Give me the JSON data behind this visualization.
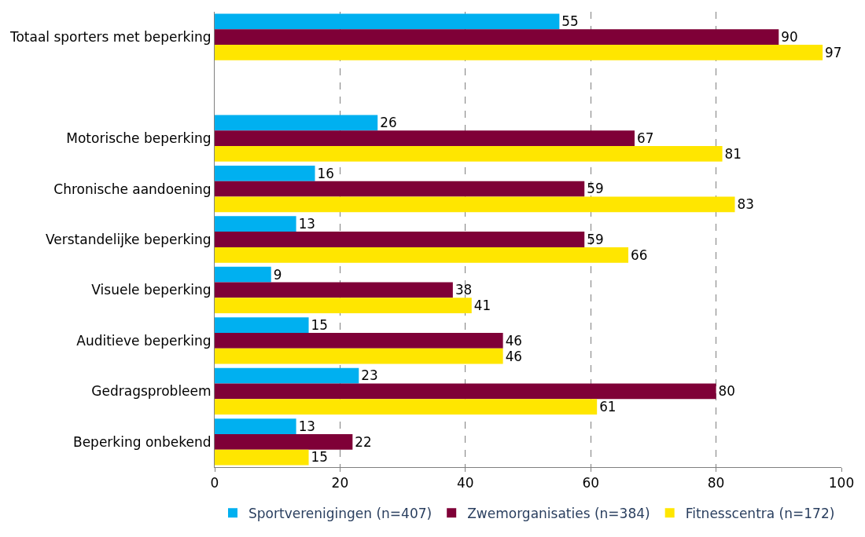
{
  "chart_data": {
    "type": "bar",
    "orientation": "horizontal",
    "categories": [
      "Totaal sporters met beperking",
      null,
      "Motorische beperking",
      "Chronische aandoening",
      "Verstandelijke beperking",
      "Visuele beperking",
      "Auditieve beperking",
      "Gedragsprobleem",
      "Beperking onbekend"
    ],
    "series": [
      {
        "name": "Sportverenigingen (n=407)",
        "color": "#00b0f0",
        "values": [
          55,
          null,
          26,
          16,
          13,
          9,
          15,
          23,
          13
        ]
      },
      {
        "name": "Zwemorganisaties (n=384)",
        "color": "#7f0037",
        "values": [
          90,
          null,
          67,
          59,
          59,
          38,
          46,
          80,
          22
        ]
      },
      {
        "name": "Fitnesscentra (n=172)",
        "color": "#ffe600",
        "values": [
          97,
          null,
          81,
          83,
          66,
          41,
          46,
          61,
          15
        ]
      }
    ],
    "xlim": [
      0,
      100
    ],
    "xticks": [
      0,
      20,
      40,
      60,
      80,
      100
    ],
    "grid": "x",
    "line_style": "dashed",
    "legend": "bottom",
    "data_labels": true
  }
}
